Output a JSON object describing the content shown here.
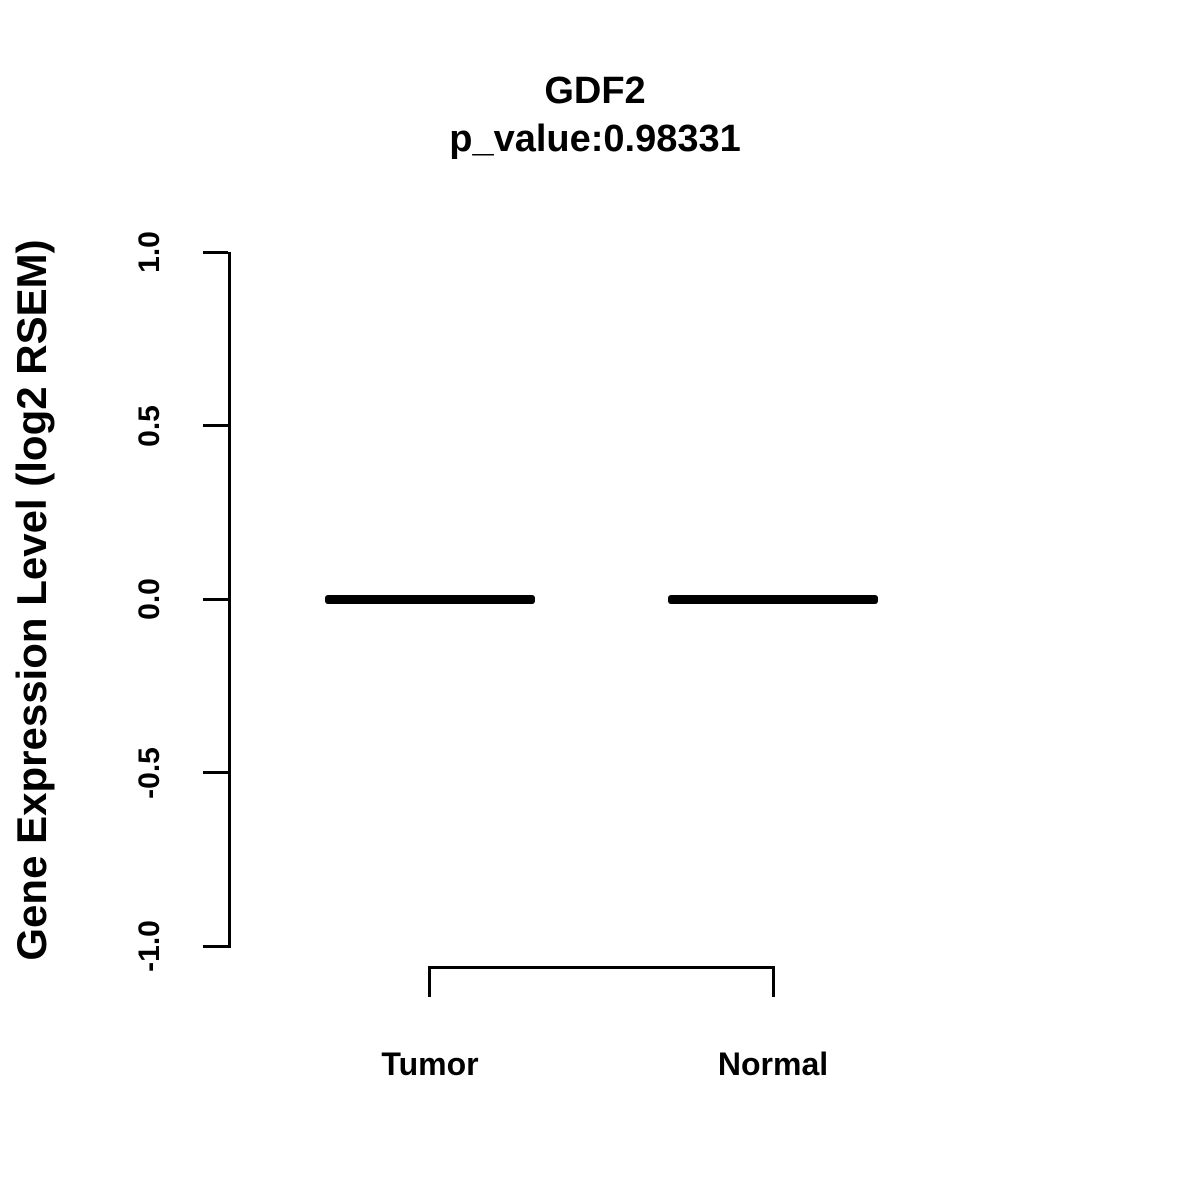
{
  "figure": {
    "title": "GDF2",
    "subtitle": "p_value:0.98331",
    "ylabel": "Gene Expression Level (log2 RSEM)"
  },
  "chart_data": {
    "type": "boxplot",
    "title": "GDF2",
    "subtitle": "p_value:0.98331",
    "p_value": 0.98331,
    "gene": "GDF2",
    "ylabel": "Gene Expression Level (log2 RSEM)",
    "xlabel": "",
    "categories": [
      "Tumor",
      "Normal"
    ],
    "series": [
      {
        "name": "Tumor",
        "median": 0.0,
        "q1": 0.0,
        "q3": 0.0,
        "whisker_low": 0.0,
        "whisker_high": 0.0
      },
      {
        "name": "Normal",
        "median": 0.0,
        "q1": 0.0,
        "q3": 0.0,
        "whisker_low": 0.0,
        "whisker_high": 0.0
      }
    ],
    "ylim": [
      -1.0,
      1.0
    ],
    "yticks": [
      1.0,
      0.5,
      0.0,
      -0.5,
      -1.0
    ],
    "ytick_labels": [
      "1.0",
      "0.5",
      "0.0",
      "-0.5",
      "-1.0"
    ],
    "grid": false,
    "legend": null,
    "comparison_bracket": {
      "from": "Tumor",
      "to": "Normal"
    }
  },
  "colors": {
    "foreground": "#000000",
    "background": "#ffffff"
  }
}
